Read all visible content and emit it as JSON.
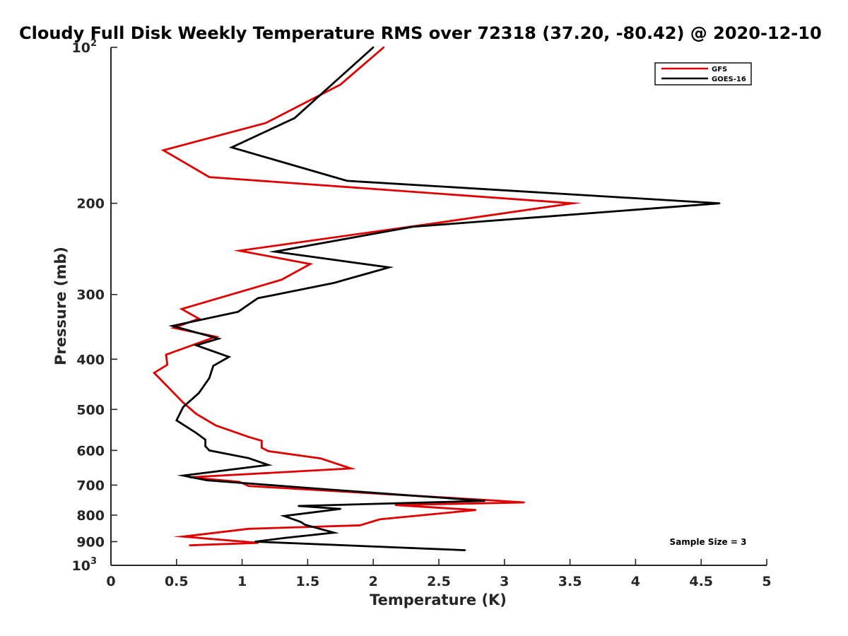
{
  "chart_data": {
    "type": "line",
    "title": "Cloudy Full Disk Weekly Temperature RMS over 72318 (37.20, -80.42) @ 2020-12-10",
    "xlabel": "Temperature (K)",
    "ylabel": "Pressure (mb)",
    "xlim": [
      0,
      5
    ],
    "ylim": [
      1000,
      100
    ],
    "yscale": "log",
    "y_reversed": true,
    "x_ticks": [
      "0",
      "0.5",
      "1",
      "1.5",
      "2",
      "2.5",
      "3",
      "3.5",
      "4",
      "4.5",
      "5"
    ],
    "y_ticks": [
      {
        "value": 100,
        "label": "10",
        "sup": "2"
      },
      {
        "value": 200,
        "label": "200",
        "sup": ""
      },
      {
        "value": 300,
        "label": "300",
        "sup": ""
      },
      {
        "value": 400,
        "label": "400",
        "sup": ""
      },
      {
        "value": 500,
        "label": "500",
        "sup": ""
      },
      {
        "value": 600,
        "label": "600",
        "sup": ""
      },
      {
        "value": 700,
        "label": "700",
        "sup": ""
      },
      {
        "value": 800,
        "label": "800",
        "sup": ""
      },
      {
        "value": 900,
        "label": "900",
        "sup": ""
      },
      {
        "value": 1000,
        "label": "10",
        "sup": "3"
      }
    ],
    "grid": false,
    "legend_position": "top-right",
    "annotation": "Sample Size = 3",
    "series": [
      {
        "name": "GFS",
        "color": "#e00000",
        "points": [
          [
            2.08,
            100
          ],
          [
            1.75,
            118
          ],
          [
            1.18,
            140
          ],
          [
            0.4,
            158
          ],
          [
            0.75,
            178
          ],
          [
            3.52,
            200
          ],
          [
            2.5,
            218
          ],
          [
            0.98,
            247
          ],
          [
            1.52,
            262
          ],
          [
            1.3,
            281
          ],
          [
            0.54,
            320
          ],
          [
            0.67,
            334
          ],
          [
            0.48,
            348
          ],
          [
            0.8,
            362
          ],
          [
            0.42,
            392
          ],
          [
            0.43,
            410
          ],
          [
            0.33,
            425
          ],
          [
            0.55,
            485
          ],
          [
            0.65,
            510
          ],
          [
            0.8,
            537
          ],
          [
            1.05,
            565
          ],
          [
            1.15,
            575
          ],
          [
            1.15,
            593
          ],
          [
            1.2,
            602
          ],
          [
            1.6,
            622
          ],
          [
            1.83,
            650
          ],
          [
            0.6,
            676
          ],
          [
            0.98,
            690
          ],
          [
            1.05,
            703
          ],
          [
            2.87,
            748
          ],
          [
            3.15,
            756
          ],
          [
            2.17,
            765
          ],
          [
            2.78,
            782
          ],
          [
            2.6,
            790
          ],
          [
            2.05,
            815
          ],
          [
            1.9,
            837
          ],
          [
            1.05,
            850
          ],
          [
            0.55,
            880
          ],
          [
            1.12,
            905
          ],
          [
            0.6,
            915
          ]
        ]
      },
      {
        "name": "GOES-16",
        "color": "#000000",
        "points": [
          [
            2.0,
            100
          ],
          [
            1.7,
            117
          ],
          [
            1.4,
            137
          ],
          [
            0.92,
            156
          ],
          [
            1.8,
            181
          ],
          [
            4.64,
            200
          ],
          [
            2.3,
            222
          ],
          [
            1.25,
            248
          ],
          [
            2.12,
            266
          ],
          [
            1.7,
            285
          ],
          [
            1.12,
            305
          ],
          [
            0.97,
            324
          ],
          [
            0.47,
            345
          ],
          [
            0.82,
            365
          ],
          [
            0.65,
            376
          ],
          [
            0.9,
            396
          ],
          [
            0.78,
            412
          ],
          [
            0.75,
            435
          ],
          [
            0.67,
            465
          ],
          [
            0.55,
            495
          ],
          [
            0.5,
            525
          ],
          [
            0.65,
            555
          ],
          [
            0.72,
            572
          ],
          [
            0.72,
            589
          ],
          [
            0.75,
            600
          ],
          [
            1.05,
            621
          ],
          [
            1.2,
            640
          ],
          [
            0.55,
            671
          ],
          [
            0.73,
            685
          ],
          [
            1.6,
            712
          ],
          [
            2.85,
            751
          ],
          [
            1.43,
            768
          ],
          [
            1.75,
            778
          ],
          [
            1.32,
            803
          ],
          [
            1.45,
            825
          ],
          [
            1.48,
            835
          ],
          [
            1.7,
            865
          ],
          [
            1.33,
            885
          ],
          [
            1.1,
            900
          ],
          [
            2.7,
            935
          ]
        ]
      }
    ]
  }
}
